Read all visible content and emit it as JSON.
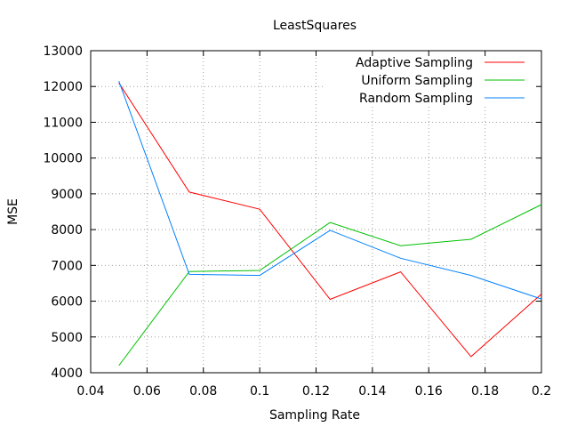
{
  "chart_data": {
    "type": "line",
    "title": "LeastSquares",
    "xlabel": "Sampling Rate",
    "ylabel": "MSE",
    "xlim": [
      0.04,
      0.2
    ],
    "ylim": [
      4000,
      13000
    ],
    "x_ticks": [
      0.04,
      0.06,
      0.08,
      0.1,
      0.12,
      0.14,
      0.16,
      0.18,
      0.2
    ],
    "x_tick_labels": [
      "0.04",
      "0.06",
      "0.08",
      "0.1",
      "0.12",
      "0.14",
      "0.16",
      "0.18",
      "0.2"
    ],
    "y_ticks": [
      4000,
      5000,
      6000,
      7000,
      8000,
      9000,
      10000,
      11000,
      12000,
      13000
    ],
    "y_tick_labels": [
      "4000",
      "5000",
      "6000",
      "7000",
      "8000",
      "9000",
      "10000",
      "11000",
      "12000",
      "13000"
    ],
    "grid": true,
    "legend_position": "top-right",
    "x": [
      0.05,
      0.075,
      0.1,
      0.125,
      0.15,
      0.175,
      0.2
    ],
    "series": [
      {
        "name": "Adaptive Sampling",
        "color": "#ff0000",
        "values": [
          12100,
          9050,
          8570,
          6050,
          6820,
          4450,
          6200
        ]
      },
      {
        "name": "Uniform Sampling",
        "color": "#00c000",
        "values": [
          4200,
          6830,
          6860,
          8200,
          7550,
          7730,
          8700
        ]
      },
      {
        "name": "Random Sampling",
        "color": "#0080ff",
        "values": [
          12150,
          6750,
          6720,
          7980,
          7200,
          6720,
          6060
        ]
      }
    ]
  }
}
